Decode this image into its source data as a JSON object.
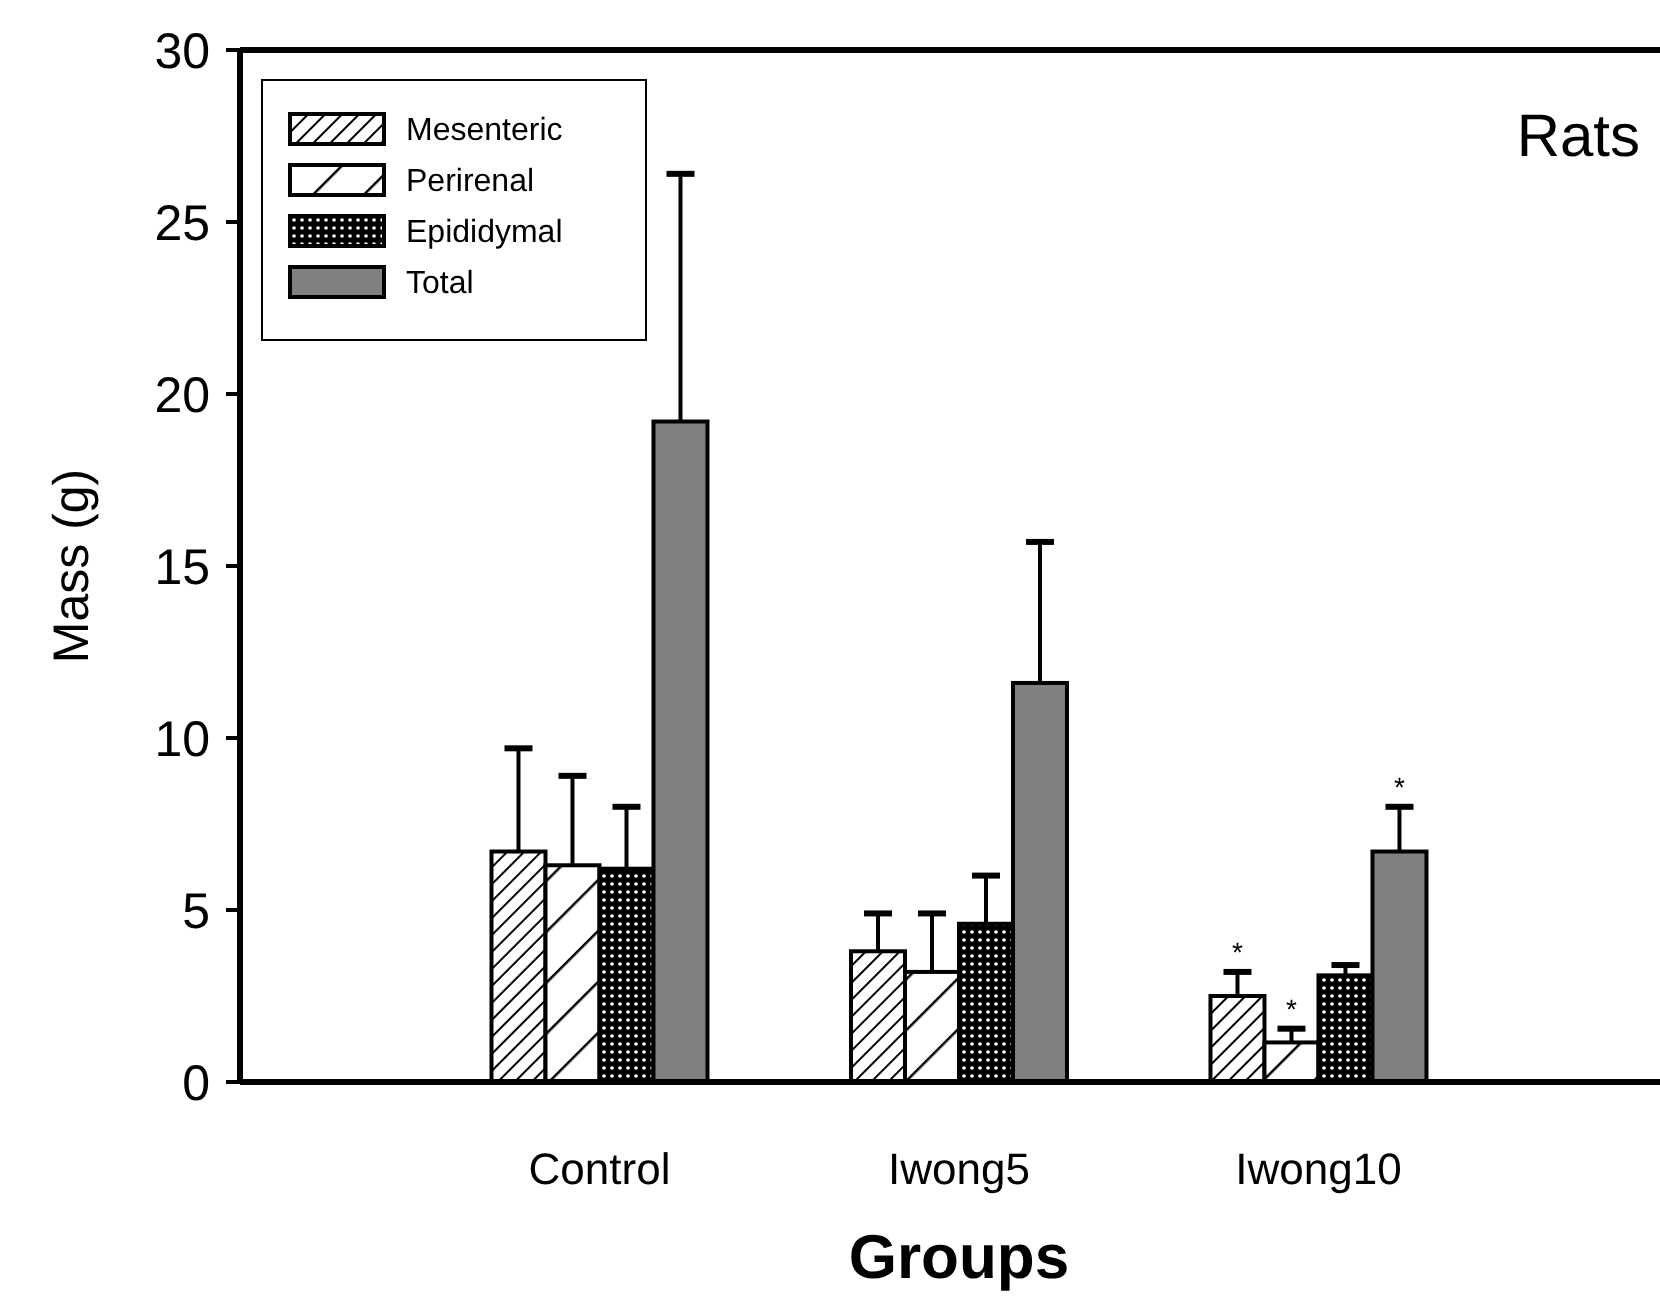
{
  "chart_data": {
    "type": "bar",
    "xlabel": "Groups",
    "ylabel": "Mass (g)",
    "categories": [
      "Control",
      "Iwong5",
      "Iwong10"
    ],
    "series": [
      {
        "name": "Mesenteric",
        "color": "#000000",
        "values": [
          6.7,
          3.8,
          2.5
        ],
        "errors": [
          3.0,
          1.1,
          0.7
        ],
        "value_labels": [
          null,
          null,
          "*"
        ]
      },
      {
        "name": "Perirenal",
        "color": "#000000",
        "values": [
          6.3,
          3.2,
          1.15
        ],
        "errors": [
          2.6,
          1.7,
          0.4
        ],
        "value_labels": [
          null,
          null,
          "*"
        ]
      },
      {
        "name": "Epididymal",
        "color": "#000000",
        "values": [
          6.2,
          4.6,
          3.1
        ],
        "errors": [
          1.8,
          1.4,
          0.3
        ],
        "value_labels": [
          null,
          null,
          null
        ]
      },
      {
        "name": "Total",
        "color": "#808080",
        "values": [
          19.2,
          11.6,
          6.7
        ],
        "errors": [
          7.2,
          4.1,
          1.3
        ],
        "value_labels": [
          null,
          null,
          "*"
        ]
      }
    ],
    "ylim": [
      0,
      30
    ],
    "yticks": [
      0,
      5,
      10,
      15,
      20,
      25,
      30
    ],
    "annotations": [
      "Rats"
    ],
    "legend": "top left",
    "grid": false
  }
}
